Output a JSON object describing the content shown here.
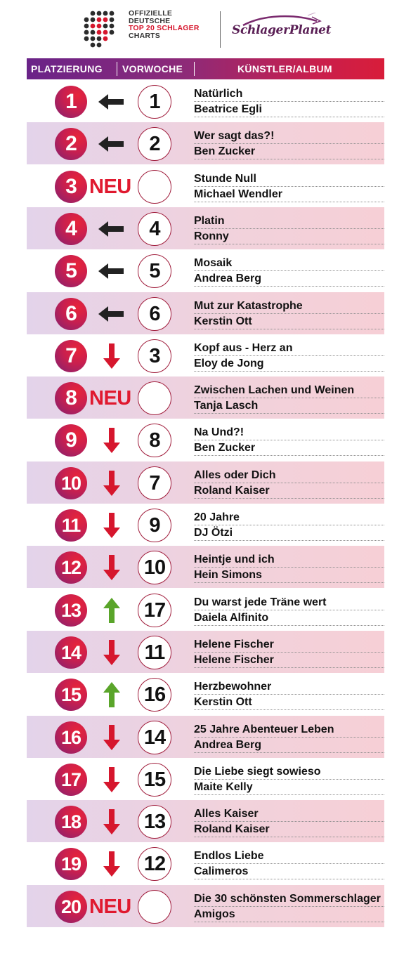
{
  "header": {
    "logo_line1": "OFFIZIELLE",
    "logo_line2": "DEUTSCHE",
    "logo_line3": "TOP 20 SCHLAGER",
    "logo_line4": "CHARTS",
    "partner_logo": "SchlagerPlanet"
  },
  "columns": {
    "placement": "PLATZIERUNG",
    "previous": "VORWOCHE",
    "artist_album": "KÜNSTLER/ALBUM"
  },
  "colors": {
    "accent_purple": "#6a2388",
    "accent_red": "#d81d3a",
    "arrow_down": "#d6162d",
    "arrow_up": "#5aa52a",
    "arrow_same": "#222222"
  },
  "entries": [
    {
      "rank": "1",
      "trend": "same",
      "previous": "1",
      "title": "Natürlich",
      "artist": "Beatrice Egli"
    },
    {
      "rank": "2",
      "trend": "same",
      "previous": "2",
      "title": "Wer sagt das?!",
      "artist": "Ben Zucker"
    },
    {
      "rank": "3",
      "trend": "new",
      "trend_label": "NEU",
      "previous": "",
      "title": "Stunde Null",
      "artist": "Michael Wendler"
    },
    {
      "rank": "4",
      "trend": "same",
      "previous": "4",
      "title": "Platin",
      "artist": "Ronny"
    },
    {
      "rank": "5",
      "trend": "same",
      "previous": "5",
      "title": "Mosaik",
      "artist": "Andrea Berg"
    },
    {
      "rank": "6",
      "trend": "same",
      "previous": "6",
      "title": "Mut zur Katastrophe",
      "artist": "Kerstin Ott"
    },
    {
      "rank": "7",
      "trend": "down",
      "previous": "3",
      "title": "Kopf aus - Herz an",
      "artist": "Eloy de Jong"
    },
    {
      "rank": "8",
      "trend": "new",
      "trend_label": "NEU",
      "previous": "",
      "title": "Zwischen Lachen und Weinen",
      "artist": "Tanja Lasch"
    },
    {
      "rank": "9",
      "trend": "down",
      "previous": "8",
      "title": "Na Und?!",
      "artist": "Ben Zucker"
    },
    {
      "rank": "10",
      "trend": "down",
      "previous": "7",
      "title": "Alles oder Dich",
      "artist": "Roland Kaiser"
    },
    {
      "rank": "11",
      "trend": "down",
      "previous": "9",
      "title": "20 Jahre",
      "artist": "DJ Ötzi"
    },
    {
      "rank": "12",
      "trend": "down",
      "previous": "10",
      "title": "Heintje und ich",
      "artist": "Hein Simons"
    },
    {
      "rank": "13",
      "trend": "up",
      "previous": "17",
      "title": "Du warst jede Träne wert",
      "artist": "Daiela Alfinito"
    },
    {
      "rank": "14",
      "trend": "down",
      "previous": "11",
      "title": "Helene Fischer",
      "artist": "Helene Fischer"
    },
    {
      "rank": "15",
      "trend": "up",
      "previous": "16",
      "title": "Herzbewohner",
      "artist": "Kerstin Ott"
    },
    {
      "rank": "16",
      "trend": "down",
      "previous": "14",
      "title": "25 Jahre Abenteuer Leben",
      "artist": "Andrea Berg"
    },
    {
      "rank": "17",
      "trend": "down",
      "previous": "15",
      "title": "Die Liebe siegt sowieso",
      "artist": "Maite Kelly"
    },
    {
      "rank": "18",
      "trend": "down",
      "previous": "13",
      "title": "Alles Kaiser",
      "artist": "Roland Kaiser"
    },
    {
      "rank": "19",
      "trend": "down",
      "previous": "12",
      "title": "Endlos Liebe",
      "artist": "Calimeros"
    },
    {
      "rank": "20",
      "trend": "new",
      "trend_label": "NEU",
      "previous": "",
      "title": "Die 30 schönsten Sommerschlager",
      "artist": "Amigos"
    }
  ]
}
